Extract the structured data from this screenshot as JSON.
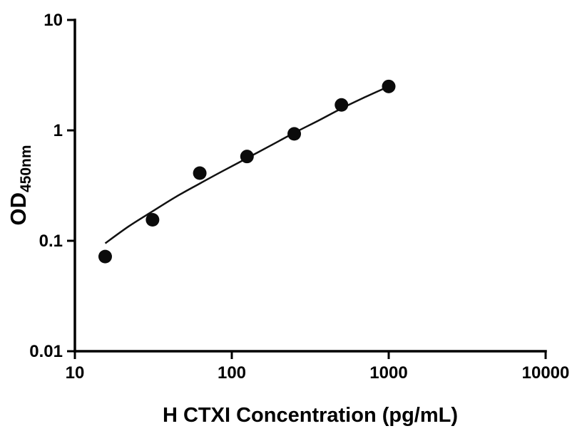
{
  "chart_data": {
    "type": "scatter",
    "title": "",
    "xlabel": "H CTXI Concentration (pg/mL)",
    "ylabel_main": "OD",
    "ylabel_sub": "450nm",
    "x_scale": "log",
    "y_scale": "log",
    "xlim": [
      10,
      10000
    ],
    "ylim": [
      0.01,
      10
    ],
    "grid": false,
    "legend": "none",
    "x_tick_values": [
      10,
      100,
      1000,
      10000
    ],
    "x_tick_labels": [
      "10",
      "100",
      "1000",
      "10000"
    ],
    "y_tick_values": [
      0.01,
      0.1,
      1,
      10
    ],
    "y_tick_labels": [
      "0.01",
      "0.1",
      "1",
      "10"
    ],
    "points": {
      "x": [
        15.6,
        31.25,
        62.5,
        125,
        250,
        500,
        1000
      ],
      "y": [
        0.072,
        0.155,
        0.41,
        0.58,
        0.93,
        1.7,
        2.5
      ]
    },
    "fit_curve": {
      "x": [
        15.6,
        22,
        31.25,
        44,
        62.5,
        88,
        125,
        177,
        250,
        354,
        500,
        707,
        1000
      ],
      "y": [
        0.095,
        0.135,
        0.185,
        0.25,
        0.33,
        0.43,
        0.56,
        0.73,
        0.95,
        1.22,
        1.58,
        2.0,
        2.5
      ]
    }
  },
  "colors": {
    "background": "#ffffff",
    "axis": "#000000",
    "marker": "#0b0b0b",
    "line": "#111111"
  }
}
